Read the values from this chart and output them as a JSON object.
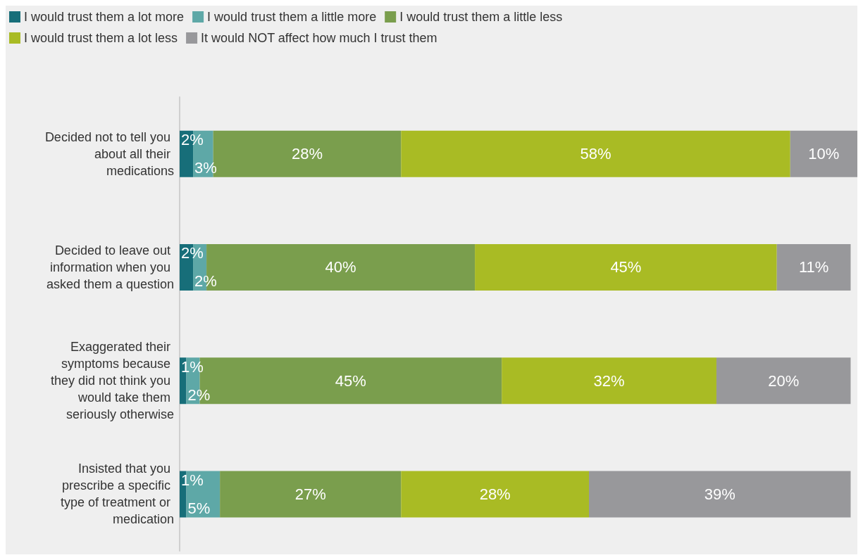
{
  "chart_data": {
    "type": "bar",
    "orientation": "horizontal",
    "stacked": true,
    "legend": "top left",
    "grid": false,
    "categories": [
      "Decided not to tell you about all their medications",
      "Decided to leave out information when you asked them a question",
      "Exaggerated their symptoms because they did not think you would take them seriously otherwise",
      "Insisted that you prescribe a specific type of treatment or medication"
    ],
    "xlim": [
      0,
      101
    ],
    "series": [
      {
        "name": "I would trust them a lot more",
        "color": "#176e79",
        "values": [
          2,
          2,
          1,
          1
        ],
        "value_labels": [
          "2%",
          "2%",
          "1%",
          "1%"
        ]
      },
      {
        "name": "I would trust them a little more",
        "color": "#5ea8a7",
        "values": [
          3,
          2,
          2,
          5
        ],
        "value_labels": [
          "3%",
          "2%",
          "2%",
          "5%"
        ]
      },
      {
        "name": "I would trust them a little less",
        "color": "#7a9e4d",
        "values": [
          28,
          40,
          45,
          27
        ],
        "value_labels": [
          "28%",
          "40%",
          "45%",
          "27%"
        ]
      },
      {
        "name": "I would trust them a lot less",
        "color": "#a9bb24",
        "values": [
          58,
          45,
          32,
          28
        ],
        "value_labels": [
          "58%",
          "45%",
          "32%",
          "28%"
        ]
      },
      {
        "name": "It would NOT affect how much I trust them",
        "color": "#98989b",
        "values": [
          10,
          11,
          20,
          39
        ],
        "value_labels": [
          "10%",
          "11%",
          "20%",
          "39%"
        ]
      }
    ]
  }
}
